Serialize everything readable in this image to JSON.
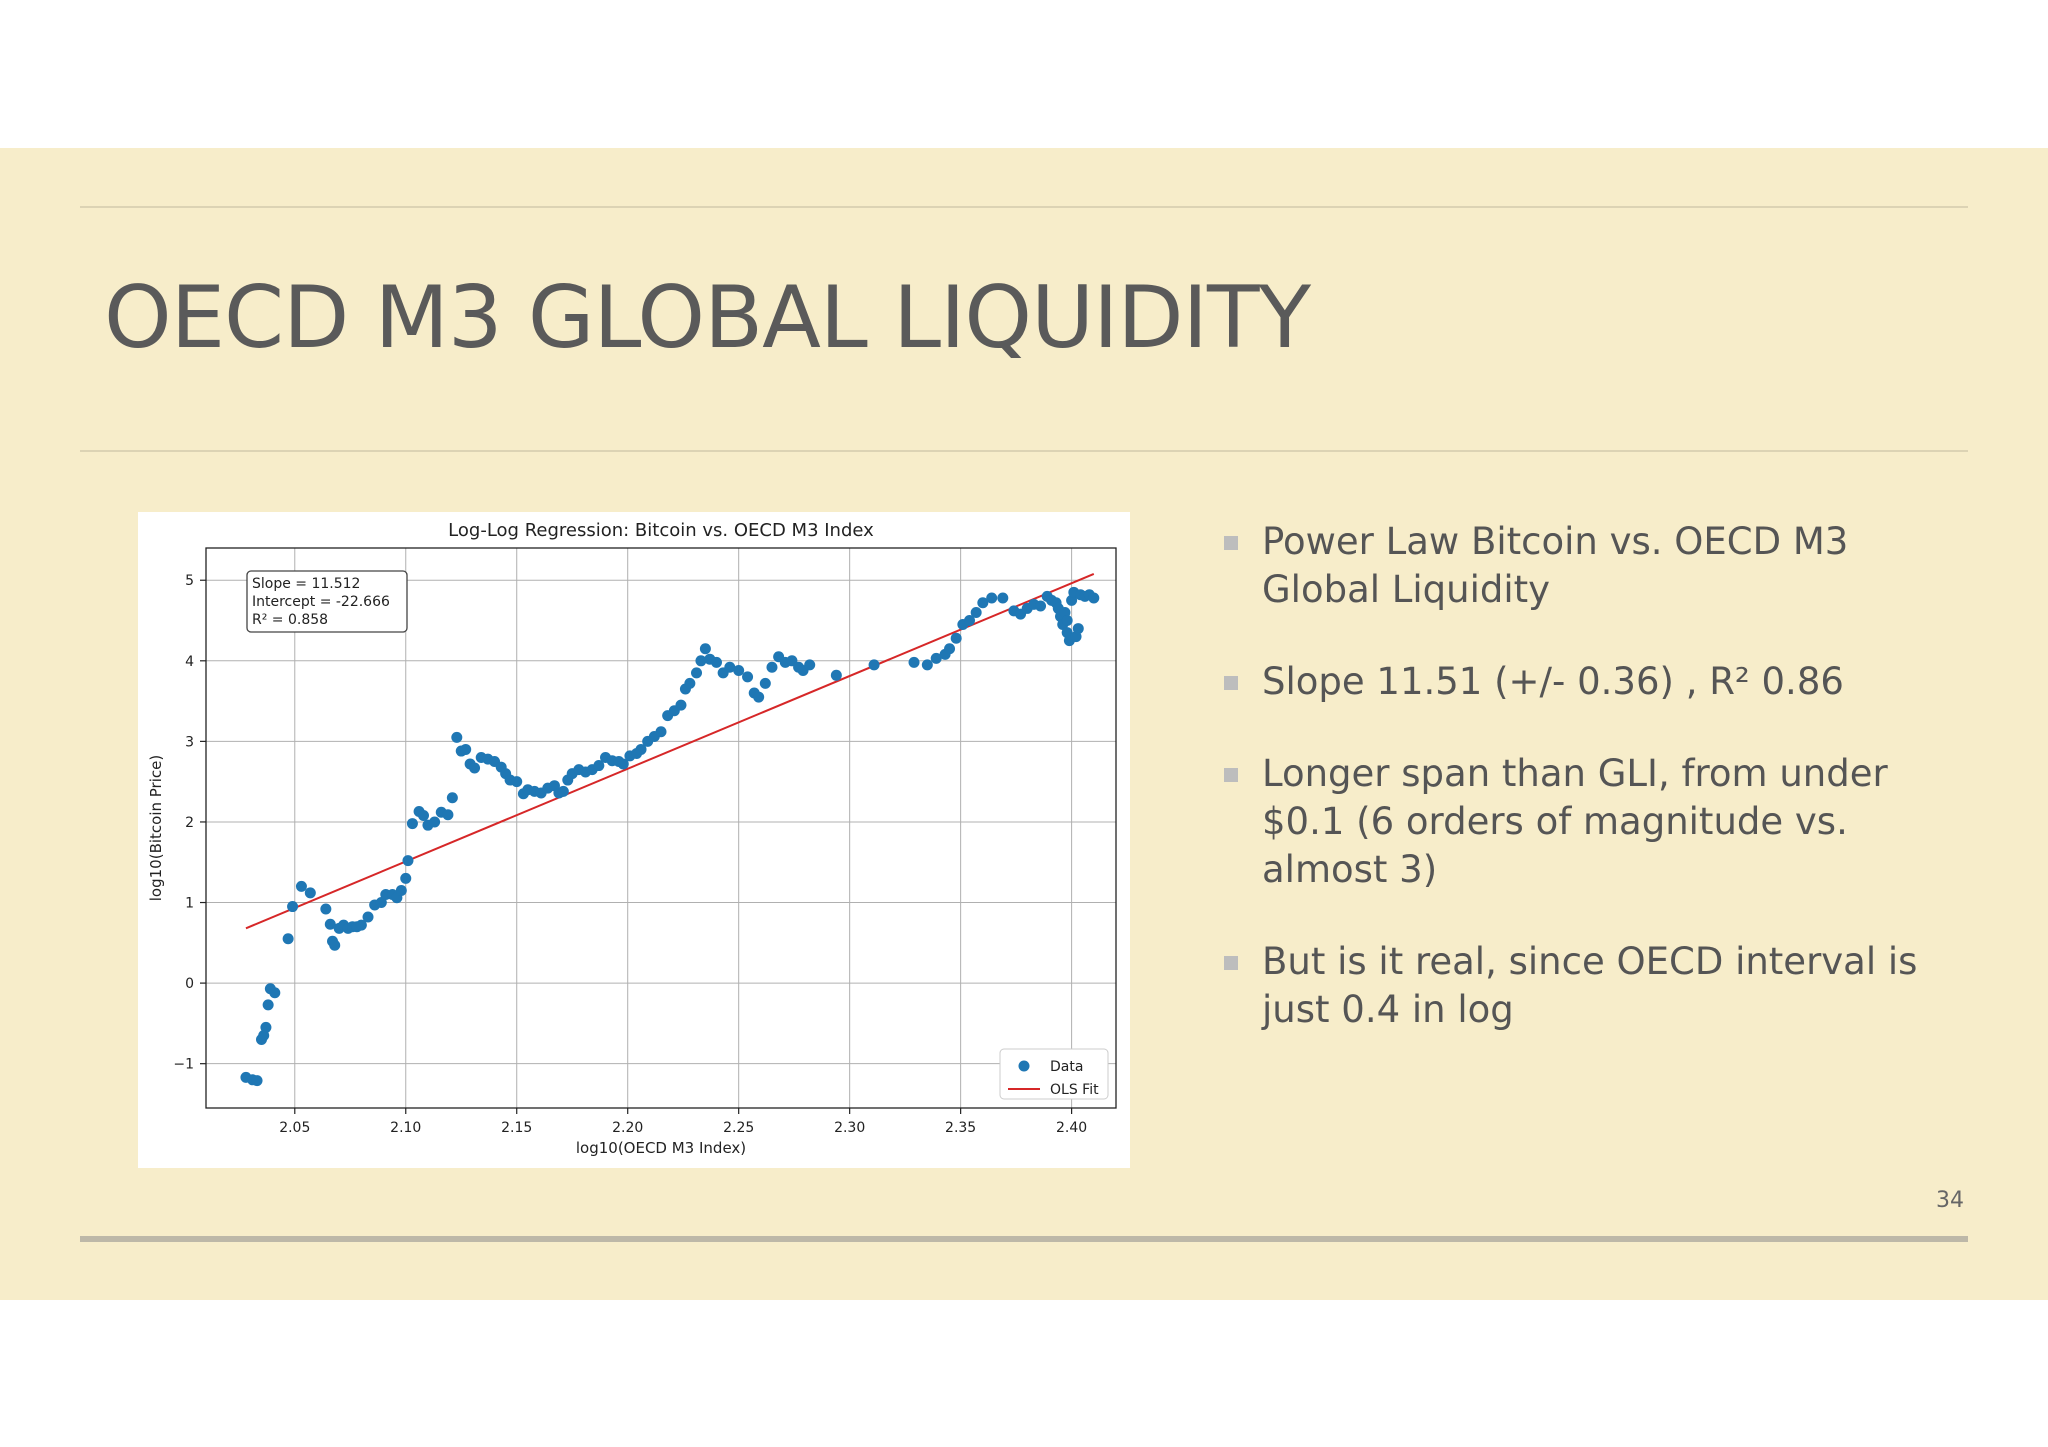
{
  "slide": {
    "title": "OECD M3 GLOBAL LIQUIDITY",
    "page_number": "34",
    "bullets": [
      "Power Law Bitcoin vs. OECD M3 Global Liquidity",
      "Slope 11.51 (+/- 0.36) , R² 0.86",
      "Longer span than GLI, from under $0.1 (6 orders of magnitude vs. almost 3)",
      "But is it real, since OECD interval is just 0.4 in log"
    ]
  },
  "chart_data": {
    "type": "scatter",
    "title": "Log-Log Regression: Bitcoin vs. OECD M3 Index",
    "xlabel": "log10(OECD M3 Index)",
    "ylabel": "log10(Bitcoin Price)",
    "xlim": [
      2.01,
      2.42
    ],
    "ylim": [
      -1.55,
      5.4
    ],
    "x_ticks": [
      "2.05",
      "2.10",
      "2.15",
      "2.20",
      "2.25",
      "2.30",
      "2.35",
      "2.40"
    ],
    "x_tick_values": [
      2.05,
      2.1,
      2.15,
      2.2,
      2.25,
      2.3,
      2.35,
      2.4
    ],
    "y_ticks": [
      "−1",
      "0",
      "1",
      "2",
      "3",
      "4",
      "5"
    ],
    "y_tick_values": [
      -1,
      0,
      1,
      2,
      3,
      4,
      5
    ],
    "grid": true,
    "legend_position": "bottom-right",
    "colors": {
      "data": "#1f77b4",
      "fit": "#d62728"
    },
    "annotation": [
      "Slope = 11.512",
      "Intercept = -22.666",
      "R² = 0.858"
    ],
    "fit": {
      "name": "OLS Fit",
      "slope": 11.512,
      "intercept": -22.666,
      "x_range": [
        2.028,
        2.41
      ]
    },
    "series": [
      {
        "name": "Data",
        "points": [
          [
            2.028,
            -1.17
          ],
          [
            2.031,
            -1.2
          ],
          [
            2.033,
            -1.21
          ],
          [
            2.035,
            -0.7
          ],
          [
            2.036,
            -0.65
          ],
          [
            2.037,
            -0.55
          ],
          [
            2.038,
            -0.27
          ],
          [
            2.039,
            -0.07
          ],
          [
            2.041,
            -0.12
          ],
          [
            2.047,
            0.55
          ],
          [
            2.049,
            0.95
          ],
          [
            2.053,
            1.2
          ],
          [
            2.057,
            1.12
          ],
          [
            2.064,
            0.92
          ],
          [
            2.066,
            0.73
          ],
          [
            2.067,
            0.52
          ],
          [
            2.068,
            0.47
          ],
          [
            2.07,
            0.68
          ],
          [
            2.072,
            0.72
          ],
          [
            2.074,
            0.68
          ],
          [
            2.076,
            0.7
          ],
          [
            2.078,
            0.7
          ],
          [
            2.08,
            0.72
          ],
          [
            2.083,
            0.82
          ],
          [
            2.086,
            0.97
          ],
          [
            2.089,
            1.0
          ],
          [
            2.091,
            1.1
          ],
          [
            2.094,
            1.1
          ],
          [
            2.096,
            1.06
          ],
          [
            2.098,
            1.15
          ],
          [
            2.1,
            1.3
          ],
          [
            2.101,
            1.52
          ],
          [
            2.103,
            1.98
          ],
          [
            2.106,
            2.13
          ],
          [
            2.108,
            2.08
          ],
          [
            2.11,
            1.96
          ],
          [
            2.113,
            2.0
          ],
          [
            2.116,
            2.12
          ],
          [
            2.119,
            2.09
          ],
          [
            2.121,
            2.3
          ],
          [
            2.123,
            3.05
          ],
          [
            2.125,
            2.88
          ],
          [
            2.127,
            2.9
          ],
          [
            2.129,
            2.72
          ],
          [
            2.131,
            2.67
          ],
          [
            2.134,
            2.8
          ],
          [
            2.137,
            2.78
          ],
          [
            2.14,
            2.75
          ],
          [
            2.143,
            2.68
          ],
          [
            2.145,
            2.6
          ],
          [
            2.147,
            2.52
          ],
          [
            2.15,
            2.5
          ],
          [
            2.153,
            2.35
          ],
          [
            2.155,
            2.4
          ],
          [
            2.158,
            2.38
          ],
          [
            2.161,
            2.36
          ],
          [
            2.164,
            2.42
          ],
          [
            2.167,
            2.45
          ],
          [
            2.169,
            2.36
          ],
          [
            2.171,
            2.38
          ],
          [
            2.173,
            2.52
          ],
          [
            2.175,
            2.6
          ],
          [
            2.178,
            2.65
          ],
          [
            2.181,
            2.62
          ],
          [
            2.184,
            2.65
          ],
          [
            2.187,
            2.7
          ],
          [
            2.19,
            2.8
          ],
          [
            2.193,
            2.76
          ],
          [
            2.196,
            2.75
          ],
          [
            2.198,
            2.72
          ],
          [
            2.201,
            2.82
          ],
          [
            2.204,
            2.85
          ],
          [
            2.206,
            2.9
          ],
          [
            2.209,
            3.0
          ],
          [
            2.212,
            3.06
          ],
          [
            2.215,
            3.12
          ],
          [
            2.218,
            3.32
          ],
          [
            2.221,
            3.38
          ],
          [
            2.224,
            3.45
          ],
          [
            2.226,
            3.65
          ],
          [
            2.228,
            3.72
          ],
          [
            2.231,
            3.85
          ],
          [
            2.233,
            4.0
          ],
          [
            2.235,
            4.15
          ],
          [
            2.237,
            4.02
          ],
          [
            2.24,
            3.98
          ],
          [
            2.243,
            3.85
          ],
          [
            2.246,
            3.92
          ],
          [
            2.25,
            3.88
          ],
          [
            2.254,
            3.8
          ],
          [
            2.257,
            3.6
          ],
          [
            2.259,
            3.55
          ],
          [
            2.262,
            3.72
          ],
          [
            2.265,
            3.92
          ],
          [
            2.268,
            4.05
          ],
          [
            2.271,
            3.98
          ],
          [
            2.274,
            4.0
          ],
          [
            2.277,
            3.92
          ],
          [
            2.279,
            3.88
          ],
          [
            2.282,
            3.95
          ],
          [
            2.294,
            3.82
          ],
          [
            2.311,
            3.95
          ],
          [
            2.329,
            3.98
          ],
          [
            2.335,
            3.95
          ],
          [
            2.339,
            4.03
          ],
          [
            2.343,
            4.08
          ],
          [
            2.345,
            4.15
          ],
          [
            2.348,
            4.28
          ],
          [
            2.351,
            4.45
          ],
          [
            2.354,
            4.5
          ],
          [
            2.357,
            4.6
          ],
          [
            2.36,
            4.72
          ],
          [
            2.364,
            4.78
          ],
          [
            2.369,
            4.78
          ],
          [
            2.374,
            4.62
          ],
          [
            2.377,
            4.58
          ],
          [
            2.38,
            4.65
          ],
          [
            2.383,
            4.7
          ],
          [
            2.386,
            4.68
          ],
          [
            2.389,
            4.8
          ],
          [
            2.391,
            4.75
          ],
          [
            2.393,
            4.72
          ],
          [
            2.394,
            4.65
          ],
          [
            2.395,
            4.55
          ],
          [
            2.396,
            4.45
          ],
          [
            2.397,
            4.6
          ],
          [
            2.398,
            4.5
          ],
          [
            2.398,
            4.35
          ],
          [
            2.399,
            4.25
          ],
          [
            2.4,
            4.75
          ],
          [
            2.401,
            4.85
          ],
          [
            2.402,
            4.3
          ],
          [
            2.403,
            4.4
          ],
          [
            2.404,
            4.82
          ],
          [
            2.406,
            4.8
          ],
          [
            2.408,
            4.82
          ],
          [
            2.41,
            4.78
          ]
        ]
      }
    ]
  }
}
